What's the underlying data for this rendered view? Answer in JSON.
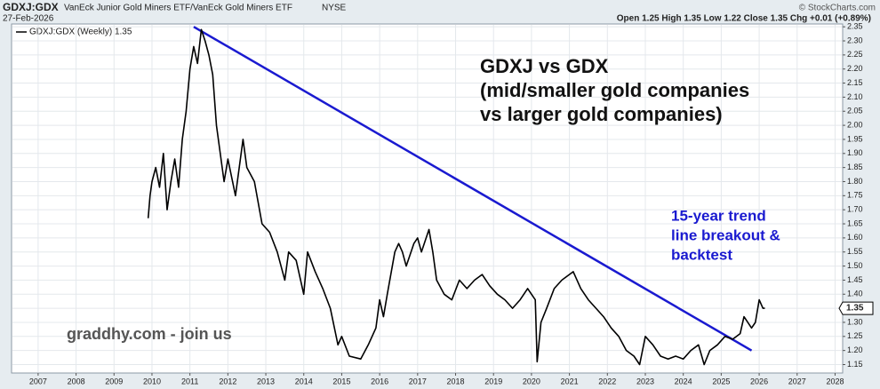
{
  "chart_data": {
    "type": "line",
    "symbol": "GDXJ:GDX",
    "description": "VanEck Junior Gold Miners ETF/VanEck Gold Miners ETF",
    "exchange": "NYSE",
    "date": "27-Feb-2026",
    "quote": "Open 1.25  High 1.35  Low 1.22  Close 1.35  Chg +0.01 (+0.89%)",
    "watermark": "© StockCharts.com",
    "title_lines": [
      "GDXJ vs GDX",
      "(mid/smaller gold companies",
      "vs larger gold companies)"
    ],
    "annotation_lines": [
      "15-year trend",
      "line breakout &",
      "backtest"
    ],
    "footer": "graddhy.com - join us",
    "x": [
      2009.9,
      2009.95,
      2010.0,
      2010.1,
      2010.2,
      2010.3,
      2010.4,
      2010.5,
      2010.6,
      2010.7,
      2010.8,
      2010.9,
      2011.0,
      2011.1,
      2011.2,
      2011.3,
      2011.4,
      2011.5,
      2011.6,
      2011.7,
      2011.8,
      2011.9,
      2012.0,
      2012.2,
      2012.4,
      2012.5,
      2012.7,
      2012.9,
      2013.1,
      2013.3,
      2013.5,
      2013.6,
      2013.8,
      2014.0,
      2014.1,
      2014.3,
      2014.5,
      2014.7,
      2014.9,
      2015.0,
      2015.2,
      2015.5,
      2015.7,
      2015.9,
      2016.0,
      2016.1,
      2016.2,
      2016.4,
      2016.5,
      2016.6,
      2016.7,
      2016.9,
      2017.0,
      2017.1,
      2017.3,
      2017.4,
      2017.5,
      2017.7,
      2017.9,
      2018.1,
      2018.3,
      2018.5,
      2018.7,
      2018.9,
      2019.1,
      2019.3,
      2019.5,
      2019.7,
      2019.9,
      2020.1,
      2020.15,
      2020.25,
      2020.4,
      2020.6,
      2020.8,
      2020.9,
      2021.1,
      2021.3,
      2021.5,
      2021.7,
      2021.9,
      2022.1,
      2022.3,
      2022.5,
      2022.7,
      2022.85,
      2023.0,
      2023.2,
      2023.4,
      2023.6,
      2023.8,
      2024.0,
      2024.2,
      2024.4,
      2024.55,
      2024.7,
      2024.9,
      2025.1,
      2025.3,
      2025.5,
      2025.6,
      2025.8,
      2025.9,
      2026.0,
      2026.1,
      2026.15
    ],
    "series": [
      {
        "name": "GDXJ:GDX (Weekly) 1.35",
        "color": "#000000",
        "values": [
          1.67,
          1.75,
          1.8,
          1.85,
          1.78,
          1.9,
          1.7,
          1.8,
          1.88,
          1.78,
          1.95,
          2.05,
          2.2,
          2.28,
          2.22,
          2.34,
          2.3,
          2.25,
          2.18,
          2.0,
          1.9,
          1.8,
          1.88,
          1.75,
          1.95,
          1.85,
          1.8,
          1.65,
          1.62,
          1.55,
          1.45,
          1.55,
          1.52,
          1.4,
          1.55,
          1.48,
          1.42,
          1.35,
          1.22,
          1.25,
          1.18,
          1.17,
          1.22,
          1.28,
          1.38,
          1.32,
          1.4,
          1.55,
          1.58,
          1.55,
          1.5,
          1.58,
          1.6,
          1.55,
          1.63,
          1.55,
          1.45,
          1.4,
          1.38,
          1.45,
          1.42,
          1.45,
          1.47,
          1.43,
          1.4,
          1.38,
          1.35,
          1.38,
          1.42,
          1.38,
          1.16,
          1.3,
          1.35,
          1.42,
          1.45,
          1.46,
          1.48,
          1.42,
          1.38,
          1.35,
          1.32,
          1.28,
          1.25,
          1.2,
          1.18,
          1.15,
          1.25,
          1.22,
          1.18,
          1.17,
          1.18,
          1.17,
          1.2,
          1.22,
          1.15,
          1.2,
          1.22,
          1.25,
          1.24,
          1.26,
          1.32,
          1.28,
          1.3,
          1.38,
          1.35,
          1.35
        ]
      }
    ],
    "trendline": {
      "x": [
        2011.1,
        2025.8
      ],
      "y": [
        2.35,
        1.2
      ],
      "color": "#1a1ad0"
    },
    "xlim": [
      2006.3,
      2028.2
    ],
    "xticks": [
      2007,
      2008,
      2009,
      2010,
      2011,
      2012,
      2013,
      2014,
      2015,
      2016,
      2017,
      2018,
      2019,
      2020,
      2021,
      2022,
      2023,
      2024,
      2025,
      2026,
      2027,
      2028
    ],
    "ylim": [
      1.12,
      2.36
    ],
    "yticks": [
      1.15,
      {
        "value": 1.2,
        "label": "1.20"
      },
      1.25,
      {
        "value": 1.3,
        "label": "1.30"
      },
      1.35,
      {
        "value": 1.4,
        "label": "1.40"
      },
      1.45,
      {
        "value": 1.5,
        "label": "1.50"
      },
      1.55,
      {
        "value": 1.6,
        "label": "1.60"
      },
      1.65,
      {
        "value": 1.7,
        "label": "1.70"
      },
      1.75,
      {
        "value": 1.8,
        "label": "1.80"
      },
      1.85,
      {
        "value": 1.9,
        "label": "1.90"
      },
      1.95,
      {
        "value": 2.0,
        "label": "2.00"
      },
      2.05,
      {
        "value": 2.1,
        "label": "2.10"
      },
      2.15,
      {
        "value": 2.2,
        "label": "2.20"
      },
      2.25,
      {
        "value": 2.3,
        "label": "2.30"
      },
      2.35
    ],
    "grid": true
  }
}
